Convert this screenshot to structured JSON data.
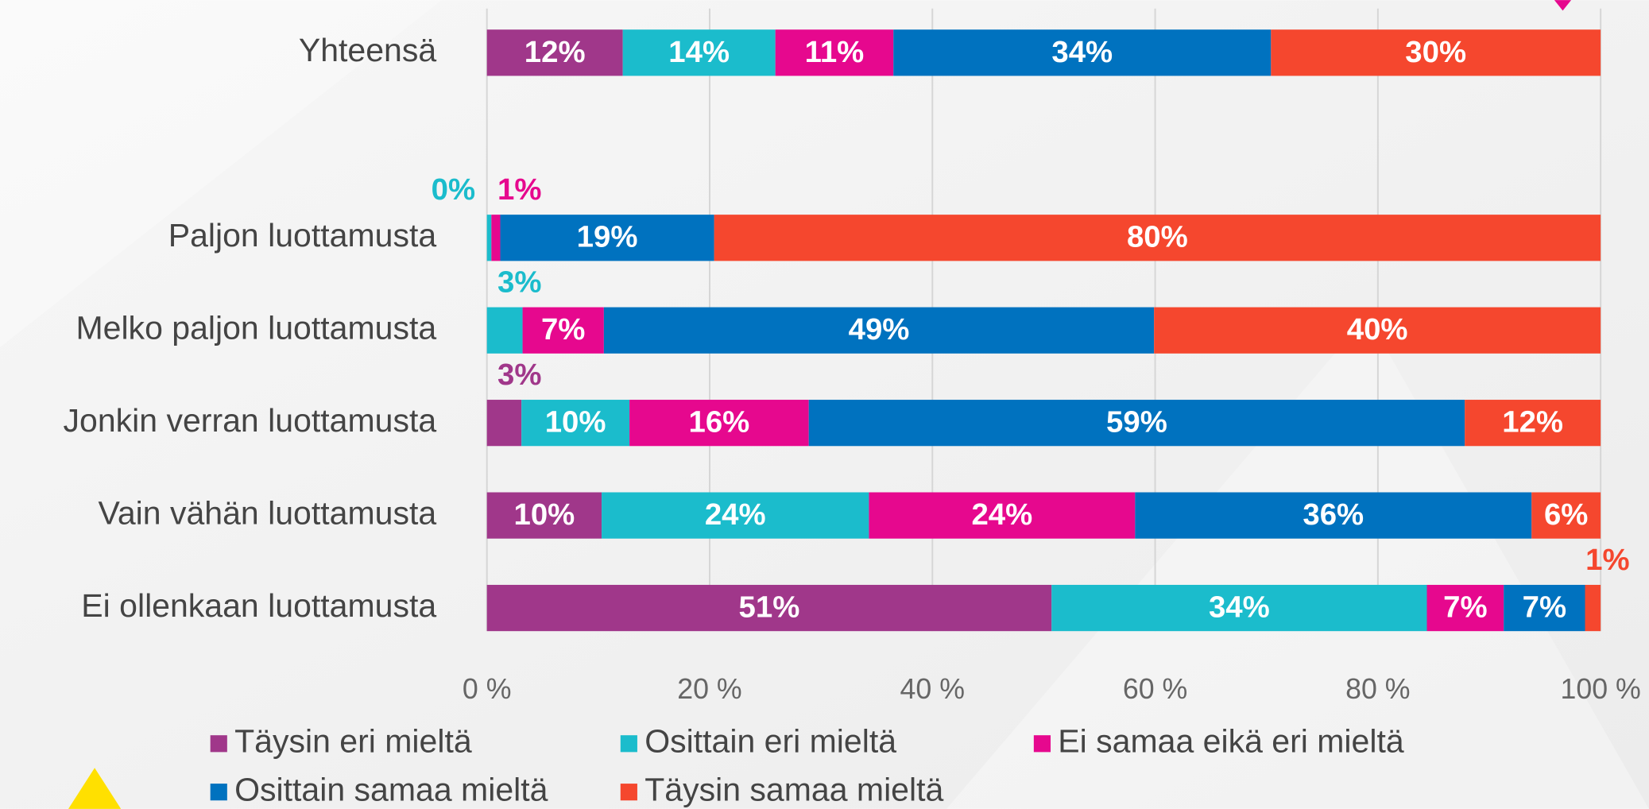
{
  "chart_data": {
    "type": "stacked_bar_horizontal",
    "categories": [
      "Yhteensä",
      "Paljon luottamusta",
      "Melko paljon luottamusta",
      "Jonkin verran luottamusta",
      "Vain vähän luottamusta",
      "Ei ollenkaan luottamusta"
    ],
    "series": [
      {
        "name": "Täysin eri mieltä",
        "color": "#a0378a",
        "values": [
          12.2,
          0,
          0,
          3.1,
          10.3,
          50.7
        ],
        "value_labels": [
          "12%",
          null,
          null,
          "3%",
          "10%",
          "51%"
        ]
      },
      {
        "name": "Osittain eri mieltä",
        "color": "#1bbccc",
        "values": [
          13.7,
          0.4,
          3.2,
          9.7,
          24.0,
          33.7
        ],
        "value_labels": [
          "14%",
          "0%",
          "3%",
          "10%",
          "24%",
          "34%"
        ]
      },
      {
        "name": "Ei samaa eikä eri mieltä",
        "color": "#e6088e",
        "values": [
          10.6,
          0.8,
          7.3,
          16.1,
          23.9,
          6.9
        ],
        "value_labels": [
          "11%",
          "1%",
          "7%",
          "16%",
          "24%",
          "7%"
        ]
      },
      {
        "name": "Osittain samaa mieltä",
        "color": "#0072bf",
        "values": [
          33.9,
          19.2,
          49.4,
          58.9,
          35.6,
          7.3
        ],
        "value_labels": [
          "34%",
          "19%",
          "49%",
          "59%",
          "36%",
          "7%"
        ]
      },
      {
        "name": "Täysin samaa mieltä",
        "color": "#f5472e",
        "values": [
          29.6,
          79.6,
          40.1,
          12.2,
          6.2,
          1.4
        ],
        "value_labels": [
          "30%",
          "80%",
          "40%",
          "12%",
          "6%",
          "1%"
        ]
      }
    ],
    "xlim": [
      0,
      100
    ],
    "xticks": [
      {
        "value": 0,
        "label": "0 %"
      },
      {
        "value": 20,
        "label": "20 %"
      },
      {
        "value": 40,
        "label": "40 %"
      },
      {
        "value": 60,
        "label": "60 %"
      },
      {
        "value": 80,
        "label": "80 %"
      },
      {
        "value": 100,
        "label": "100 %"
      }
    ],
    "grid": true
  }
}
